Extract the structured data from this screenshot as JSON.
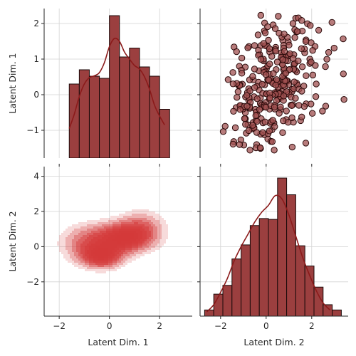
{
  "chart_data": {
    "type": "pairplot",
    "variables": [
      "Latent Dim. 1",
      "Latent Dim. 2"
    ],
    "grid": true,
    "colors": {
      "bar_fill": "#9b3f3f",
      "bar_edge": "#1a0a0a",
      "kde_line": "#8b1a1a",
      "point_fill": "#a05050",
      "point_edge": "#2a0a0a",
      "kde_fill": "#d43a3a"
    },
    "axes": {
      "dim1": {
        "range": [
          -2.6,
          3.3
        ],
        "ticks": [
          -2,
          0,
          2
        ],
        "tick_labels": [
          "−2",
          "0",
          "2"
        ]
      },
      "dim1_y": {
        "range": [
          -1.78,
          2.42
        ],
        "ticks": [
          -1,
          0,
          1,
          2
        ],
        "tick_labels": [
          "−1",
          "0",
          "1",
          "2"
        ]
      },
      "dim2": {
        "range": [
          -2.9,
          3.6
        ],
        "ticks": [
          -2,
          0,
          2
        ],
        "tick_labels": [
          "−2",
          "0",
          "2"
        ]
      },
      "dim2_y": {
        "range": [
          -3.95,
          4.55
        ],
        "ticks": [
          -2,
          0,
          2,
          4
        ],
        "tick_labels": [
          "−2",
          "0",
          "2",
          "4"
        ]
      }
    },
    "hist_dim1": {
      "bin_edges": [
        -1.6,
        -1.2,
        -0.8,
        -0.4,
        0.0,
        0.4,
        0.8,
        1.2,
        1.6,
        2.0,
        2.4
      ],
      "heights": [
        0.3,
        0.7,
        0.52,
        0.46,
        2.22,
        1.06,
        1.31,
        0.78,
        0.52,
        -0.41
      ],
      "kde_x": [
        -1.6,
        -1.4,
        -1.2,
        -1.0,
        -0.8,
        -0.6,
        -0.4,
        -0.2,
        0.0,
        0.2,
        0.4,
        0.6,
        0.8,
        1.0,
        1.2,
        1.4,
        1.6,
        1.8,
        2.0,
        2.2
      ],
      "kde_y": [
        -0.95,
        -0.55,
        -0.05,
        0.3,
        0.48,
        0.53,
        0.62,
        0.9,
        1.35,
        1.58,
        1.5,
        1.2,
        1.0,
        0.82,
        0.72,
        0.5,
        0.15,
        -0.3,
        -0.6,
        -0.85
      ]
    },
    "hist_dim2": {
      "bin_edges": [
        -2.7,
        -2.3,
        -1.9,
        -1.5,
        -1.1,
        -0.7,
        -0.3,
        0.1,
        0.5,
        0.9,
        1.3,
        1.7,
        2.1,
        2.5,
        2.9,
        3.3
      ],
      "heights": [
        -3.6,
        -2.7,
        -2.2,
        -0.7,
        0.1,
        1.2,
        1.6,
        1.55,
        3.9,
        2.95,
        0.05,
        -1.1,
        -2.3,
        -3.3,
        -3.6
      ],
      "kde_x": [
        -2.6,
        -2.3,
        -2.0,
        -1.7,
        -1.4,
        -1.1,
        -0.8,
        -0.5,
        -0.2,
        0.1,
        0.4,
        0.7,
        1.0,
        1.3,
        1.6,
        1.9,
        2.2,
        2.5,
        2.8
      ],
      "kde_y": [
        -3.7,
        -3.3,
        -2.6,
        -1.8,
        -0.8,
        0.0,
        0.7,
        1.4,
        1.95,
        2.35,
        2.9,
        2.7,
        1.8,
        0.6,
        -0.6,
        -1.6,
        -2.5,
        -3.2,
        -3.6
      ]
    },
    "scatter_seed": 7,
    "scatter_n": 330,
    "scatter_center": [
      0.3,
      0.2
    ],
    "scatter_sd": [
      1.0,
      1.0
    ],
    "scatter_corr": 0.35,
    "kde_modes": [
      {
        "x": 0.6,
        "y": 0.5,
        "sx": 0.75,
        "sy": 0.55,
        "w": 1.0
      },
      {
        "x": -0.3,
        "y": -0.55,
        "sx": 0.55,
        "sy": 0.45,
        "w": 0.85
      },
      {
        "x": -0.9,
        "y": 0.2,
        "sx": 0.7,
        "sy": 0.7,
        "w": 0.45
      },
      {
        "x": 1.3,
        "y": 1.2,
        "sx": 0.6,
        "sy": 0.6,
        "w": 0.35
      }
    ]
  }
}
